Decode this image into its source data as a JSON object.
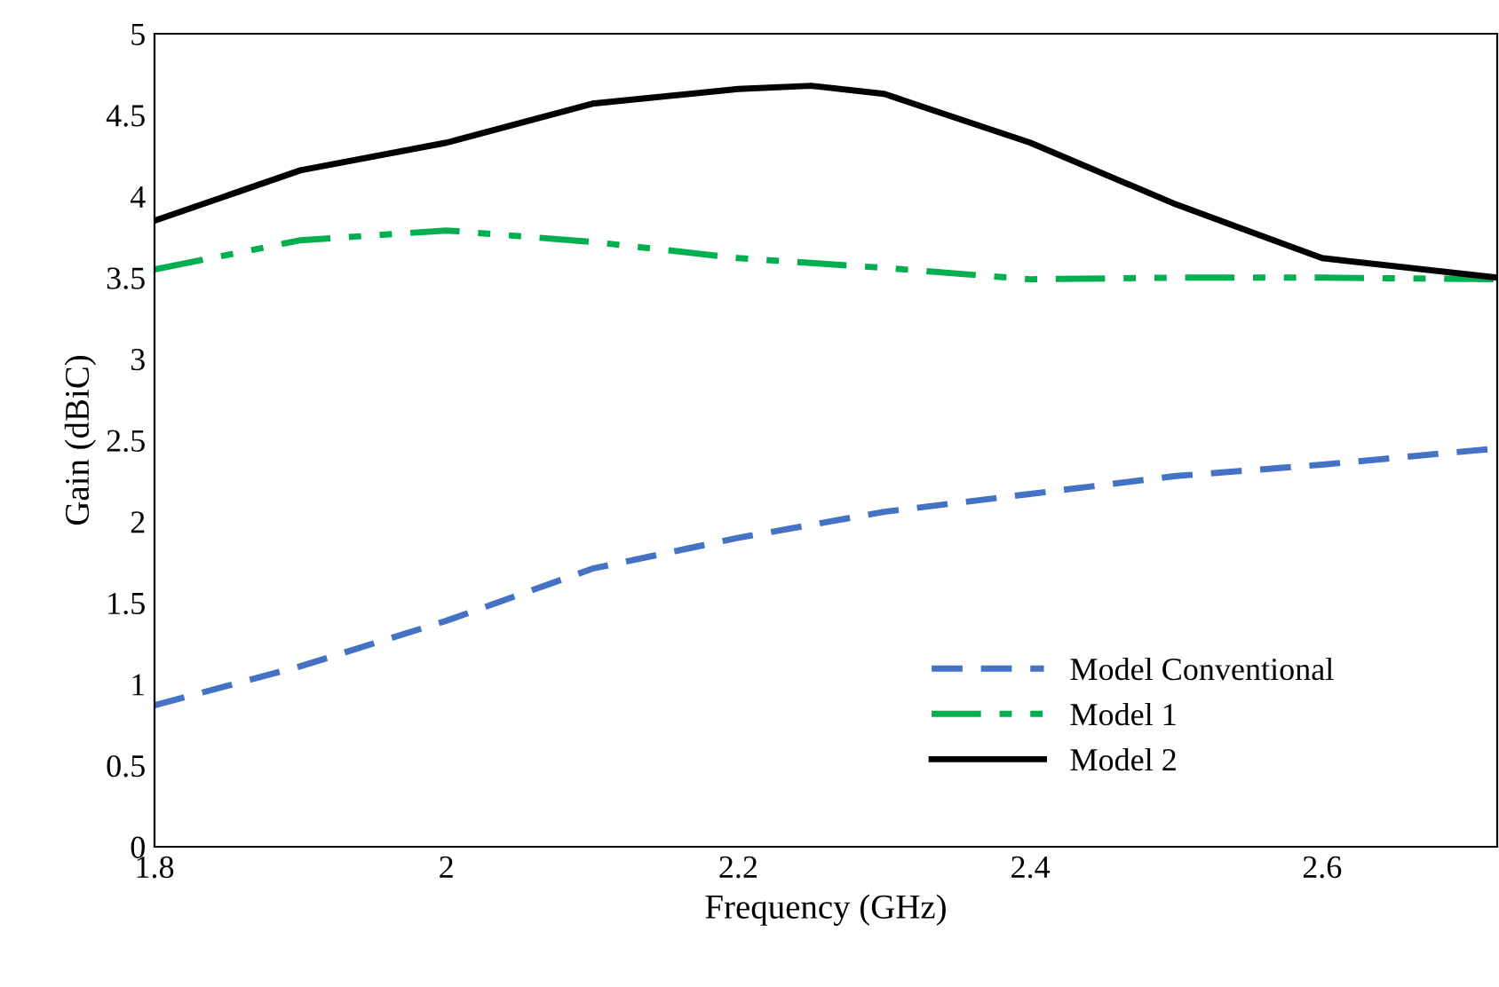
{
  "chart_data": {
    "type": "line",
    "xlabel": "Frequency (GHz)",
    "ylabel": "Gain (dBiC)",
    "x": [
      1.8,
      1.9,
      2.0,
      2.1,
      2.2,
      2.25,
      2.3,
      2.4,
      2.5,
      2.6,
      2.72
    ],
    "series": [
      {
        "name": "Model Conventional",
        "color": "#4472c4",
        "line_style": "dashed",
        "values": [
          0.87,
          1.11,
          1.39,
          1.71,
          1.9,
          1.98,
          2.06,
          2.17,
          2.28,
          2.35,
          2.45
        ]
      },
      {
        "name": "Model 1",
        "color": "#00b050",
        "line_style": "dashdot",
        "values": [
          3.55,
          3.73,
          3.79,
          3.72,
          3.62,
          3.59,
          3.56,
          3.49,
          3.5,
          3.5,
          3.49
        ]
      },
      {
        "name": "Model 2",
        "color": "#000000",
        "line_style": "solid",
        "values": [
          3.85,
          4.16,
          4.33,
          4.57,
          4.66,
          4.68,
          4.63,
          4.33,
          3.95,
          3.62,
          3.5
        ]
      }
    ],
    "xlim": [
      1.8,
      2.72
    ],
    "ylim": [
      0,
      5
    ],
    "xticks": [
      1.8,
      2,
      2.2,
      2.4,
      2.6
    ],
    "yticks": [
      0,
      0.5,
      1,
      1.5,
      2,
      2.5,
      3,
      3.5,
      4,
      4.5,
      5
    ],
    "grid": false,
    "legend": "bottom right",
    "marker": "none"
  }
}
